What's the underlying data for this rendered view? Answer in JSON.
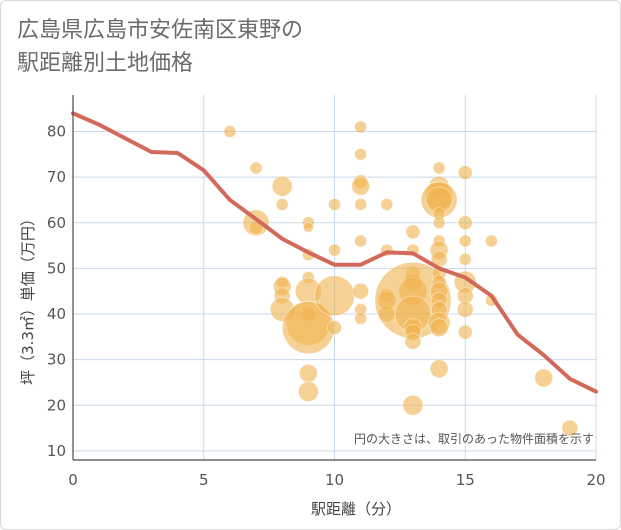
{
  "chart_data": {
    "type": "scatter",
    "title": "広島県広島市安佐南区東野の\n駅距離別土地価格",
    "xlabel": "駅距離（分）",
    "ylabel": "坪（3.3㎡）単価（万円）",
    "note": "円の大きさは、取引のあった物件面積を示す",
    "xlim": [
      0,
      20
    ],
    "ylim": [
      8,
      88
    ],
    "xticks": [
      0,
      5,
      10,
      15,
      20
    ],
    "yticks": [
      10,
      20,
      30,
      40,
      50,
      60,
      70,
      80
    ],
    "grid": true,
    "colors": {
      "bubble": "#f0b24e",
      "line": "#d2695a",
      "grid": "#c9d9ec",
      "axis": "#4a4a4a"
    },
    "bubbles": [
      {
        "x": 6,
        "y": 80,
        "r": 6
      },
      {
        "x": 7,
        "y": 72,
        "r": 6
      },
      {
        "x": 7,
        "y": 60,
        "r": 13
      },
      {
        "x": 7,
        "y": 59,
        "r": 7
      },
      {
        "x": 8,
        "y": 68,
        "r": 10
      },
      {
        "x": 8,
        "y": 64,
        "r": 6
      },
      {
        "x": 8,
        "y": 47,
        "r": 6
      },
      {
        "x": 8,
        "y": 46,
        "r": 9
      },
      {
        "x": 8,
        "y": 44,
        "r": 8
      },
      {
        "x": 8,
        "y": 41,
        "r": 12
      },
      {
        "x": 9,
        "y": 60,
        "r": 6
      },
      {
        "x": 9,
        "y": 59,
        "r": 5
      },
      {
        "x": 9,
        "y": 53,
        "r": 6
      },
      {
        "x": 9,
        "y": 48,
        "r": 6
      },
      {
        "x": 9,
        "y": 45,
        "r": 13
      },
      {
        "x": 9,
        "y": 40,
        "r": 7
      },
      {
        "x": 9,
        "y": 38,
        "r": 22
      },
      {
        "x": 9,
        "y": 37,
        "r": 26
      },
      {
        "x": 9,
        "y": 27,
        "r": 9
      },
      {
        "x": 9,
        "y": 23,
        "r": 10
      },
      {
        "x": 10,
        "y": 64,
        "r": 6
      },
      {
        "x": 10,
        "y": 54,
        "r": 6
      },
      {
        "x": 10,
        "y": 44,
        "r": 20
      },
      {
        "x": 10,
        "y": 37,
        "r": 7
      },
      {
        "x": 11,
        "y": 81,
        "r": 6
      },
      {
        "x": 11,
        "y": 75,
        "r": 6
      },
      {
        "x": 11,
        "y": 69,
        "r": 7
      },
      {
        "x": 11,
        "y": 68,
        "r": 9
      },
      {
        "x": 11,
        "y": 64,
        "r": 6
      },
      {
        "x": 11,
        "y": 56,
        "r": 6
      },
      {
        "x": 11,
        "y": 45,
        "r": 8
      },
      {
        "x": 11,
        "y": 41,
        "r": 6
      },
      {
        "x": 11,
        "y": 39,
        "r": 6
      },
      {
        "x": 12,
        "y": 64,
        "r": 6
      },
      {
        "x": 12,
        "y": 54,
        "r": 6
      },
      {
        "x": 12,
        "y": 44,
        "r": 7
      },
      {
        "x": 12,
        "y": 43,
        "r": 9
      },
      {
        "x": 12,
        "y": 40,
        "r": 8
      },
      {
        "x": 13,
        "y": 58,
        "r": 7
      },
      {
        "x": 13,
        "y": 54,
        "r": 6
      },
      {
        "x": 13,
        "y": 49,
        "r": 7
      },
      {
        "x": 13,
        "y": 47,
        "r": 9
      },
      {
        "x": 13,
        "y": 45,
        "r": 14
      },
      {
        "x": 13,
        "y": 43,
        "r": 38
      },
      {
        "x": 13,
        "y": 40,
        "r": 18
      },
      {
        "x": 13,
        "y": 37,
        "r": 9
      },
      {
        "x": 13,
        "y": 36,
        "r": 8
      },
      {
        "x": 13,
        "y": 34,
        "r": 8
      },
      {
        "x": 13,
        "y": 20,
        "r": 10
      },
      {
        "x": 14,
        "y": 72,
        "r": 6
      },
      {
        "x": 14,
        "y": 68,
        "r": 10
      },
      {
        "x": 14,
        "y": 66,
        "r": 14
      },
      {
        "x": 14,
        "y": 65,
        "r": 18
      },
      {
        "x": 14,
        "y": 65,
        "r": 13
      },
      {
        "x": 14,
        "y": 62,
        "r": 6
      },
      {
        "x": 14,
        "y": 60,
        "r": 6
      },
      {
        "x": 14,
        "y": 56,
        "r": 6
      },
      {
        "x": 14,
        "y": 54,
        "r": 9
      },
      {
        "x": 14,
        "y": 52,
        "r": 8
      },
      {
        "x": 14,
        "y": 49,
        "r": 7
      },
      {
        "x": 14,
        "y": 47,
        "r": 7
      },
      {
        "x": 14,
        "y": 45,
        "r": 9
      },
      {
        "x": 14,
        "y": 43,
        "r": 8
      },
      {
        "x": 14,
        "y": 41,
        "r": 8
      },
      {
        "x": 14,
        "y": 38,
        "r": 11
      },
      {
        "x": 14,
        "y": 37,
        "r": 9
      },
      {
        "x": 14,
        "y": 28,
        "r": 9
      },
      {
        "x": 15,
        "y": 71,
        "r": 7
      },
      {
        "x": 15,
        "y": 60,
        "r": 7
      },
      {
        "x": 15,
        "y": 56,
        "r": 6
      },
      {
        "x": 15,
        "y": 52,
        "r": 6
      },
      {
        "x": 15,
        "y": 47,
        "r": 11
      },
      {
        "x": 15,
        "y": 44,
        "r": 8
      },
      {
        "x": 15,
        "y": 41,
        "r": 8
      },
      {
        "x": 15,
        "y": 36,
        "r": 7
      },
      {
        "x": 16,
        "y": 56,
        "r": 6
      },
      {
        "x": 16,
        "y": 43,
        "r": 6
      },
      {
        "x": 18,
        "y": 26,
        "r": 9
      },
      {
        "x": 19,
        "y": 15,
        "r": 8
      }
    ],
    "line": {
      "x": [
        0,
        1,
        2,
        3,
        4,
        5,
        6,
        7,
        8,
        9,
        10,
        11,
        12,
        13,
        14,
        15,
        16,
        17,
        18,
        19,
        20
      ],
      "y": [
        84,
        81.5,
        78.5,
        75.5,
        75.3,
        71.5,
        65,
        60.8,
        56.5,
        53.5,
        50.8,
        50.8,
        53.5,
        53.3,
        50,
        48,
        44,
        35.5,
        31,
        25.8,
        23
      ]
    }
  }
}
